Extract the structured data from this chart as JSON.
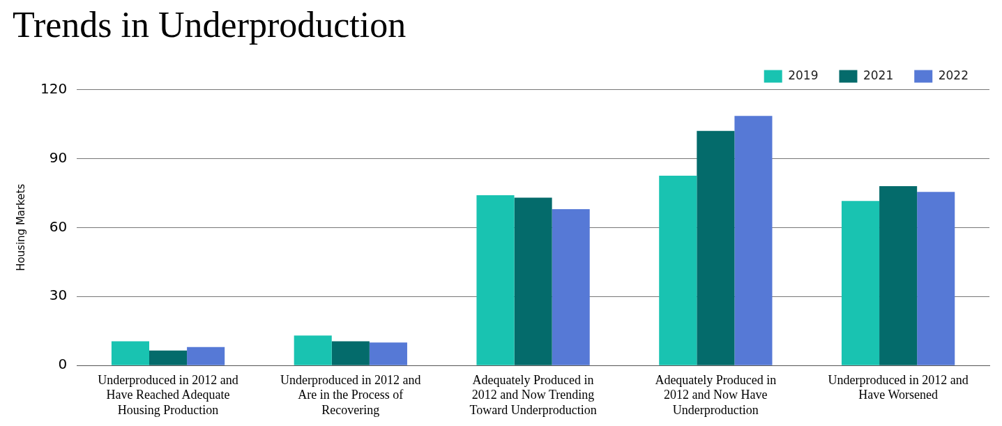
{
  "chart_data": {
    "type": "bar",
    "title": "Trends in Underproduction",
    "ylabel": "Housing Markets",
    "categories": [
      "Underproduced in 2012 and Have Reached Adequate Housing Production",
      "Underproduced in 2012 and Are in the Process of Recovering",
      "Adequately Produced in 2012 and Now Trending Toward Underproduction",
      "Adequately Produced in 2012 and Now Have Underproduction",
      "Underproduced in 2012 and Have Worsened"
    ],
    "series": [
      {
        "name": "2019",
        "color": "#19c3b1",
        "values": [
          10.5,
          13,
          74,
          82.5,
          71.5
        ]
      },
      {
        "name": "2021",
        "color": "#046b6b",
        "values": [
          6.5,
          10.5,
          73,
          102,
          78
        ]
      },
      {
        "name": "2022",
        "color": "#5679d6",
        "values": [
          8,
          10,
          68,
          108.5,
          75.5
        ]
      }
    ],
    "ylim": [
      0,
      120
    ],
    "yticks": [
      0,
      30,
      60,
      90,
      120
    ],
    "grid": "y",
    "legend": "top right"
  }
}
